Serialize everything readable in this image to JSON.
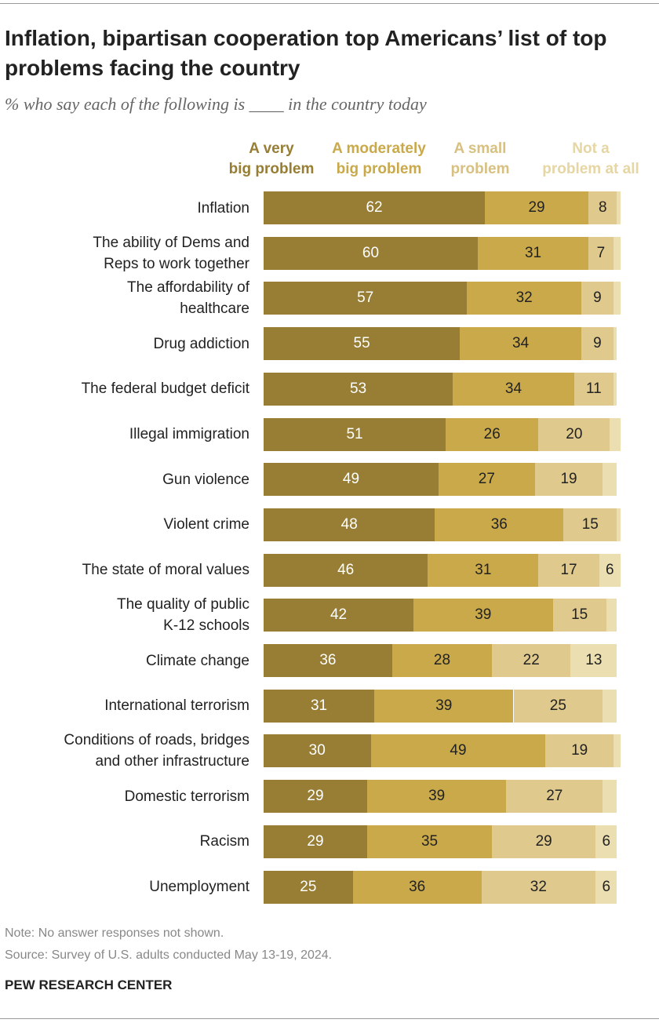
{
  "title": "Inflation, bipartisan cooperation top Americans’ list of top problems facing the country",
  "subtitle": "% who say each of the following is ____ in the country today",
  "note": "Note: No answer responses not shown.",
  "source": "Source: Survey of U.S. adults conducted May 13-19, 2024.",
  "brand": "PEW RESEARCH CENTER",
  "chart_data": {
    "type": "bar",
    "orientation": "horizontal-stacked",
    "xlim": [
      0,
      100
    ],
    "colors": [
      "#977e34",
      "#c9a94a",
      "#dfc98c",
      "#ebdeb0"
    ],
    "header_colors": [
      "#977e34",
      "#c9a94a",
      "#d8c080",
      "#e6d6a4"
    ],
    "value_colors": [
      "#ffffff",
      "#222222",
      "#222222",
      "#222222"
    ],
    "series": [
      {
        "name": "A very big problem",
        "values": [
          62,
          60,
          57,
          55,
          53,
          51,
          49,
          48,
          46,
          42,
          36,
          31,
          30,
          29,
          29,
          25
        ],
        "labels": [
          "62",
          "60",
          "57",
          "55",
          "53",
          "51",
          "49",
          "48",
          "46",
          "42",
          "36",
          "31",
          "30",
          "29",
          "29",
          "25"
        ]
      },
      {
        "name": "A moderately big problem",
        "values": [
          29,
          31,
          32,
          34,
          34,
          26,
          27,
          36,
          31,
          39,
          28,
          39,
          49,
          39,
          35,
          36
        ],
        "labels": [
          "29",
          "31",
          "32",
          "34",
          "34",
          "26",
          "27",
          "36",
          "31",
          "39",
          "28",
          "39",
          "49",
          "39",
          "35",
          "36"
        ]
      },
      {
        "name": "A small problem",
        "values": [
          8,
          7,
          9,
          9,
          11,
          20,
          19,
          15,
          17,
          15,
          22,
          25,
          19,
          27,
          29,
          32
        ],
        "labels": [
          "8",
          "7",
          "9",
          "9",
          "11",
          "20",
          "19",
          "15",
          "17",
          "15",
          "22",
          "25",
          "19",
          "27",
          "29",
          "32"
        ]
      },
      {
        "name": "Not a problem at all",
        "values": [
          1,
          2,
          2,
          1,
          1,
          3,
          4,
          1,
          6,
          3,
          13,
          4,
          2,
          4,
          6,
          6
        ],
        "labels": [
          "",
          "",
          "",
          "",
          "",
          "",
          "",
          "",
          "6",
          "",
          "13",
          "",
          "",
          "",
          "6",
          "6"
        ]
      }
    ],
    "series_labels": [
      [
        "A very",
        "big problem"
      ],
      [
        "A moderately",
        "big problem"
      ],
      [
        "A small",
        "problem"
      ],
      [
        "Not a",
        "problem at all"
      ]
    ],
    "categories": [
      [
        "Inflation"
      ],
      [
        "The ability of Dems and",
        "Reps to work together"
      ],
      [
        "The affordability of",
        "healthcare"
      ],
      [
        "Drug addiction"
      ],
      [
        "The federal budget deficit"
      ],
      [
        "Illegal immigration"
      ],
      [
        "Gun violence"
      ],
      [
        "Violent crime"
      ],
      [
        "The state of moral values"
      ],
      [
        "The quality of public",
        "K-12 schools"
      ],
      [
        "Climate change"
      ],
      [
        "International terrorism"
      ],
      [
        "Conditions of roads, bridges",
        "and other infrastructure"
      ],
      [
        "Domestic terrorism"
      ],
      [
        "Racism"
      ],
      [
        "Unemployment"
      ]
    ]
  }
}
